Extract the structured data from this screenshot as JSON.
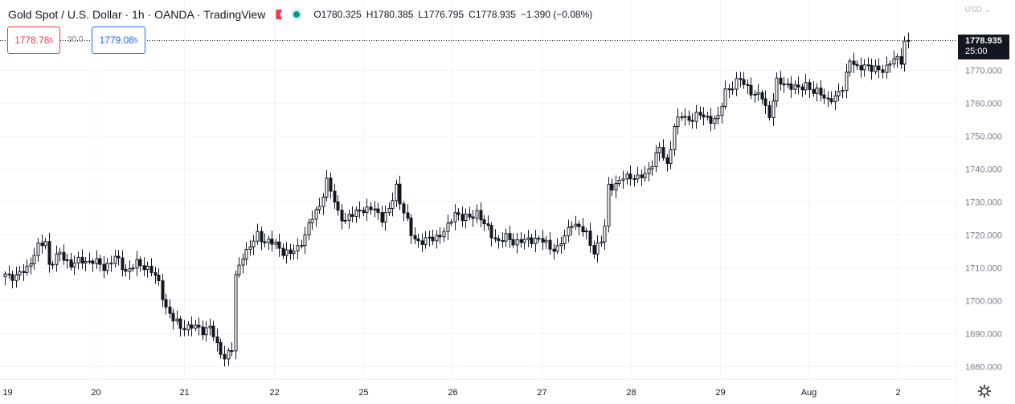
{
  "header": {
    "symbol": "Gold Spot / U.S. Dollar · 1h · OANDA · TradingView",
    "open": "O1780.325",
    "high": "H1780.385",
    "low": "L1776.795",
    "close": "C1778.935",
    "change": "−1.390 (−0.08%)"
  },
  "trade": {
    "sell_price": "1778.78",
    "sell_sup": "5",
    "spread": "30.0",
    "buy_price": "1779.08",
    "buy_sup": "5"
  },
  "currency_menu": "USD ⌄",
  "last_price": {
    "value": "1778.935",
    "countdown": "25:00"
  },
  "colors": {
    "candle": "#131722",
    "grid": "#f0f3fa",
    "axis_text": "#787b86",
    "sell": "#f23645",
    "buy": "#2962ff",
    "live_dot": "#089981"
  },
  "chart_data": {
    "type": "candlestick",
    "ylim": [
      1677,
      1787
    ],
    "y_ticks": [
      1680,
      1690,
      1700,
      1710,
      1720,
      1730,
      1740,
      1750,
      1760,
      1770
    ],
    "y_tick_labels": [
      "1680.000",
      "1690.000",
      "1700.000",
      "1710.000",
      "1720.000",
      "1730.000",
      "1740.000",
      "1750.000",
      "1760.000",
      "1770.000"
    ],
    "x_tick_labels": [
      "19",
      "20",
      "21",
      "22",
      "25",
      "26",
      "27",
      "28",
      "29",
      "Aug",
      "2"
    ],
    "grid": true,
    "close_path": [
      [
        0,
        1708
      ],
      [
        3,
        1707
      ],
      [
        6,
        1710
      ],
      [
        9,
        1716
      ],
      [
        11,
        1718
      ],
      [
        12,
        1711
      ],
      [
        15,
        1714
      ],
      [
        18,
        1711
      ],
      [
        21,
        1712
      ],
      [
        24,
        1712
      ],
      [
        27,
        1710
      ],
      [
        30,
        1713
      ],
      [
        33,
        1709
      ],
      [
        36,
        1711
      ],
      [
        39,
        1710
      ],
      [
        40,
        1709
      ],
      [
        42,
        1705
      ],
      [
        44,
        1698
      ],
      [
        46,
        1694
      ],
      [
        48,
        1692
      ],
      [
        51,
        1692
      ],
      [
        54,
        1691
      ],
      [
        56,
        1692
      ],
      [
        58,
        1686
      ],
      [
        60,
        1683
      ],
      [
        62,
        1685
      ],
      [
        63,
        1707
      ],
      [
        65,
        1714
      ],
      [
        67,
        1716
      ],
      [
        69,
        1720
      ],
      [
        71,
        1718
      ],
      [
        74,
        1717
      ],
      [
        76,
        1715
      ],
      [
        78,
        1714
      ],
      [
        80,
        1716
      ],
      [
        82,
        1720
      ],
      [
        84,
        1725
      ],
      [
        86,
        1729
      ],
      [
        88,
        1736
      ],
      [
        89,
        1733
      ],
      [
        91,
        1727
      ],
      [
        93,
        1724
      ],
      [
        95,
        1726
      ],
      [
        97,
        1728
      ],
      [
        99,
        1727
      ],
      [
        101,
        1728
      ],
      [
        103,
        1725
      ],
      [
        105,
        1727
      ],
      [
        107,
        1735
      ],
      [
        108,
        1730
      ],
      [
        109,
        1727
      ],
      [
        111,
        1720
      ],
      [
        113,
        1718
      ],
      [
        115,
        1718
      ],
      [
        117,
        1719
      ],
      [
        119,
        1720
      ],
      [
        121,
        1722
      ],
      [
        123,
        1727
      ],
      [
        125,
        1725
      ],
      [
        127,
        1725
      ],
      [
        129,
        1727
      ],
      [
        131,
        1723
      ],
      [
        133,
        1720
      ],
      [
        135,
        1718
      ],
      [
        137,
        1719
      ],
      [
        139,
        1718
      ],
      [
        141,
        1718
      ],
      [
        143,
        1718
      ],
      [
        145,
        1719
      ],
      [
        147,
        1718
      ],
      [
        149,
        1716
      ],
      [
        151,
        1716
      ],
      [
        153,
        1719
      ],
      [
        155,
        1724
      ],
      [
        157,
        1722
      ],
      [
        159,
        1720
      ],
      [
        161,
        1715
      ],
      [
        163,
        1718
      ],
      [
        164,
        1722
      ],
      [
        165,
        1735
      ],
      [
        167,
        1735
      ],
      [
        169,
        1737
      ],
      [
        171,
        1738
      ],
      [
        173,
        1737
      ],
      [
        175,
        1738
      ],
      [
        177,
        1742
      ],
      [
        179,
        1746
      ],
      [
        181,
        1741
      ],
      [
        183,
        1753
      ],
      [
        185,
        1756
      ],
      [
        187,
        1755
      ],
      [
        189,
        1756
      ],
      [
        191,
        1756
      ],
      [
        193,
        1755
      ],
      [
        195,
        1755
      ],
      [
        197,
        1764
      ],
      [
        199,
        1765
      ],
      [
        201,
        1767
      ],
      [
        203,
        1765
      ],
      [
        205,
        1762
      ],
      [
        207,
        1762
      ],
      [
        209,
        1756
      ],
      [
        211,
        1766
      ],
      [
        213,
        1766
      ],
      [
        215,
        1765
      ],
      [
        217,
        1764
      ],
      [
        219,
        1766
      ],
      [
        221,
        1763
      ],
      [
        223,
        1763
      ],
      [
        225,
        1761
      ],
      [
        227,
        1761
      ],
      [
        229,
        1765
      ],
      [
        231,
        1773
      ],
      [
        233,
        1770
      ],
      [
        235,
        1772
      ],
      [
        237,
        1770
      ],
      [
        239,
        1770
      ],
      [
        241,
        1771
      ],
      [
        243,
        1773
      ],
      [
        245,
        1773
      ],
      [
        246,
        1779
      ],
      [
        247,
        1778.935
      ]
    ]
  }
}
